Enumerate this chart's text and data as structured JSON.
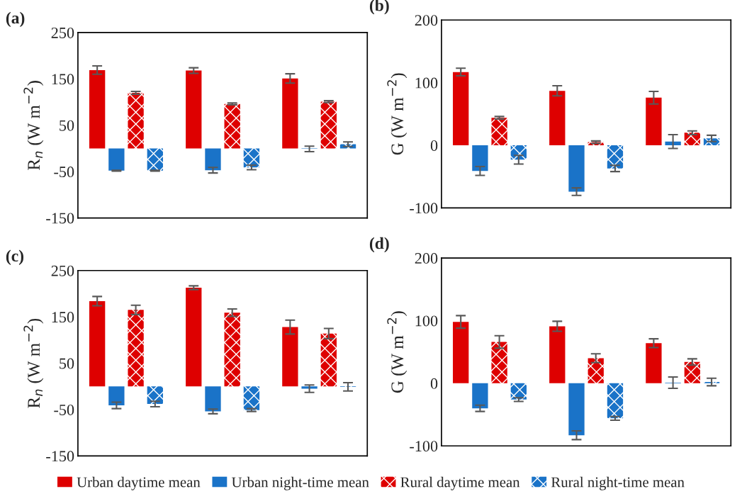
{
  "chart_data": [
    {
      "type": "bar",
      "title": "(a)",
      "ylabel": "R$_{n}$ (W m$^{−2}$)",
      "categories": [
        null,
        null,
        null
      ],
      "ylim": [
        -150,
        250
      ],
      "yticks": [
        -150,
        -50,
        50,
        150,
        250
      ],
      "tick_labels": "y",
      "grid": false,
      "legend": "bottom",
      "series": [
        {
          "name": "Urban daytime mean",
          "color": "#de0000",
          "values": [
            169,
            168,
            151
          ],
          "errors": [
            9,
            6,
            10
          ]
        },
        {
          "name": "Urban night-time mean",
          "color": "#1a73c8",
          "values": [
            -48,
            -47,
            -1
          ],
          "errors": [
            1,
            6,
            6
          ]
        },
        {
          "name": "Rural daytime mean",
          "color": "#de0000",
          "values": [
            120,
            96,
            101
          ],
          "errors": [
            3,
            2,
            2
          ]
        },
        {
          "name": "Rural night-time mean",
          "color": "#1a73c8",
          "values": [
            -48,
            -41,
            9
          ],
          "errors": [
            1,
            5,
            5
          ]
        }
      ]
    },
    {
      "type": "bar",
      "title": "(b)",
      "ylabel": "G (W m$^{−2}$)",
      "categories": [
        null,
        null,
        null
      ],
      "ylim": [
        -100,
        200
      ],
      "yticks": [
        -100,
        0,
        100,
        200
      ],
      "tick_labels": "y",
      "grid": false,
      "series": [
        {
          "color": "#de0000",
          "values": [
            117,
            87,
            76
          ],
          "errors": [
            6,
            8,
            10
          ]
        },
        {
          "color": "#1a73c8",
          "values": [
            -41,
            -74,
            6
          ],
          "errors": [
            7,
            6,
            11
          ]
        },
        {
          "color": "#de0000",
          "values": [
            44,
            5,
            20
          ],
          "errors": [
            2,
            2,
            3
          ]
        },
        {
          "color": "#1a73c8",
          "values": [
            -23,
            -37,
            11
          ],
          "errors": [
            7,
            5,
            5
          ]
        }
      ]
    },
    {
      "type": "bar",
      "title": "(c)",
      "ylabel": "R$_{n}$ (W m$^{−2}$)",
      "categories": [
        null,
        null,
        null
      ],
      "ylim": [
        -150,
        250
      ],
      "yticks": [
        -150,
        -50,
        50,
        150,
        250
      ],
      "tick_labels": "y",
      "grid": false,
      "series": [
        {
          "color": "#de0000",
          "values": [
            184,
            213,
            128
          ],
          "errors": [
            10,
            4,
            15
          ]
        },
        {
          "color": "#1a73c8",
          "values": [
            -41,
            -54,
            -5
          ],
          "errors": [
            7,
            5,
            8
          ]
        },
        {
          "color": "#de0000",
          "values": [
            165,
            159,
            114
          ],
          "errors": [
            10,
            8,
            11
          ]
        },
        {
          "color": "#1a73c8",
          "values": [
            -38,
            -51,
            -1
          ],
          "errors": [
            6,
            3,
            9
          ]
        }
      ]
    },
    {
      "type": "bar",
      "title": "(d)",
      "ylabel": "G (W m$^{−2}$)",
      "categories": [
        null,
        null,
        null
      ],
      "ylim": [
        -100,
        200
      ],
      "yticks": [
        -100,
        0,
        100,
        200
      ],
      "tick_labels": "y",
      "grid": false,
      "series": [
        {
          "color": "#de0000",
          "values": [
            98,
            91,
            64
          ],
          "errors": [
            10,
            8,
            7
          ]
        },
        {
          "color": "#1a73c8",
          "values": [
            -40,
            -83,
            1
          ],
          "errors": [
            5,
            7,
            9
          ]
        },
        {
          "color": "#de0000",
          "values": [
            66,
            40,
            34
          ],
          "errors": [
            10,
            7,
            5
          ]
        },
        {
          "color": "#1a73c8",
          "values": [
            -26,
            -56,
            2
          ],
          "errors": [
            3,
            3,
            6
          ]
        }
      ]
    }
  ]
}
